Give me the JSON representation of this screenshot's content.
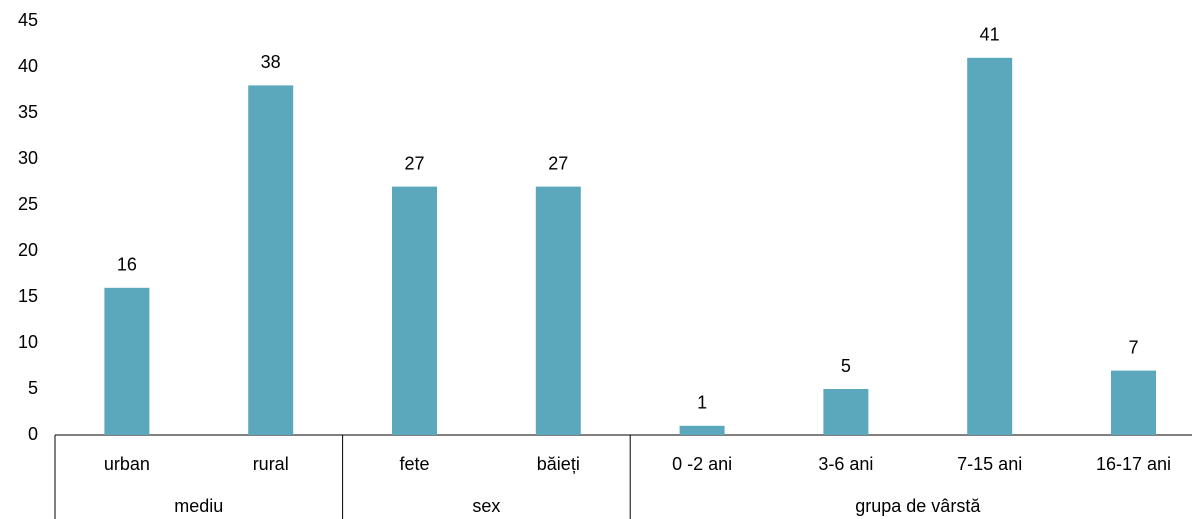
{
  "chart_data": {
    "type": "bar",
    "groups": [
      {
        "name": "mediu",
        "categories": [
          "urban",
          "rural"
        ]
      },
      {
        "name": "sex",
        "categories": [
          "fete",
          "băieți"
        ]
      },
      {
        "name": "grupa de vârstă",
        "categories": [
          "0 -2 ani",
          "3-6 ani",
          "7-15 ani",
          "16-17 ani"
        ]
      }
    ],
    "values": [
      16,
      38,
      27,
      27,
      1,
      5,
      41,
      7
    ],
    "color": "#5ba8bc",
    "ylim": [
      0,
      45
    ],
    "yticks": [
      0,
      5,
      10,
      15,
      20,
      25,
      30,
      35,
      40,
      45
    ],
    "grid": false
  }
}
